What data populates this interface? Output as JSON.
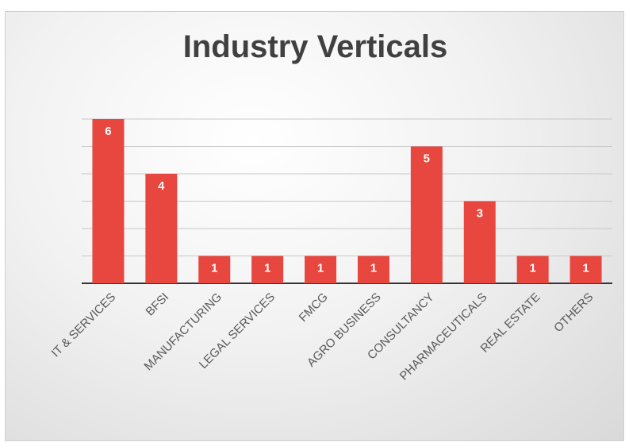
{
  "chart_data": {
    "type": "bar",
    "title": "Industry Verticals",
    "categories": [
      "IT & SERVICES",
      "BFSI",
      "MANUFACTURING",
      "LEGAL SERVICES",
      "FMCG",
      "AGRO BUSINESS",
      "CONSULTANCY",
      "PHARMACEUTICALS",
      "REAL ESTATE",
      "OTHERS"
    ],
    "values": [
      6,
      4,
      1,
      1,
      1,
      1,
      5,
      3,
      1,
      1
    ],
    "ylim": [
      0,
      6
    ],
    "grid": true,
    "legend": "none",
    "xlabel": "",
    "ylabel": "",
    "bar_color": "#e8473f"
  }
}
